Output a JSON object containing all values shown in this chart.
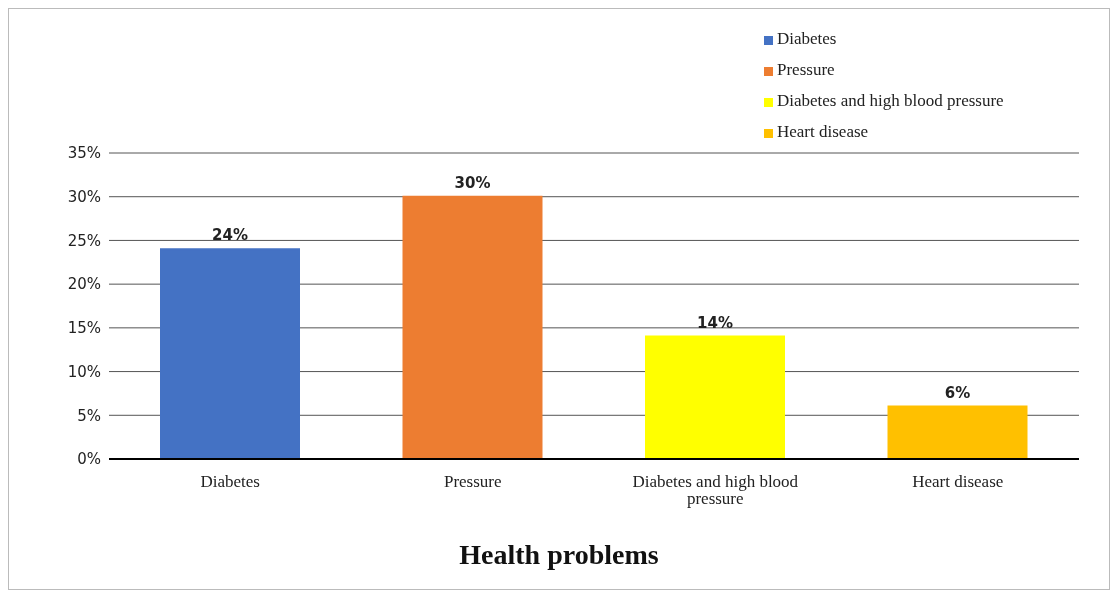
{
  "chart_data": {
    "type": "bar",
    "xlabel": "Health problems",
    "categories": [
      "Diabetes",
      "Pressure",
      "Diabetes and high blood pressure",
      "Heart disease"
    ],
    "series": [
      {
        "name": "Diabetes",
        "color": "#4472c4",
        "values": [
          24,
          null,
          null,
          null
        ],
        "value_labels": [
          "24%",
          null,
          null,
          null
        ]
      },
      {
        "name": "Pressure",
        "color": "#ed7d31",
        "values": [
          null,
          30,
          null,
          null
        ],
        "value_labels": [
          null,
          "30%",
          null,
          null
        ]
      },
      {
        "name": "Diabetes and high blood pressure",
        "color": "#ffff00",
        "values": [
          null,
          null,
          14,
          null
        ],
        "value_labels": [
          null,
          null,
          "14%",
          null
        ]
      },
      {
        "name": "Heart disease",
        "color": "#ffc000",
        "values": [
          null,
          null,
          null,
          6
        ],
        "value_labels": [
          null,
          null,
          null,
          "6%"
        ]
      }
    ],
    "stacked": true,
    "ylim": [
      0,
      35
    ],
    "yticks": [
      {
        "value": 0,
        "label": "0%"
      },
      {
        "value": 5,
        "label": "5%"
      },
      {
        "value": 10,
        "label": "10%"
      },
      {
        "value": 15,
        "label": "15%"
      },
      {
        "value": 20,
        "label": "20%"
      },
      {
        "value": 25,
        "label": "25%"
      },
      {
        "value": 30,
        "label": "30%"
      },
      {
        "value": 35,
        "label": "35%"
      }
    ],
    "grid": "y",
    "legend": "top right"
  }
}
